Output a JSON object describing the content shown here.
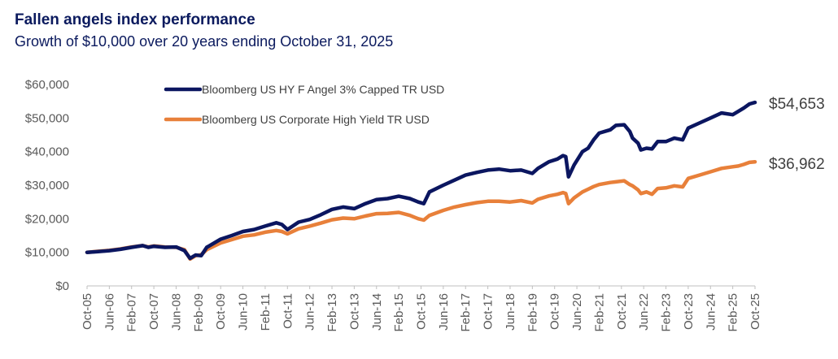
{
  "chart_data": {
    "type": "line",
    "title": "Fallen angels index performance",
    "subtitle": "Growth of $10,000 over 20 years ending October 31, 2025",
    "xlabel": "",
    "ylabel": "",
    "ylim": [
      0,
      60000
    ],
    "yticks": [
      0,
      10000,
      20000,
      30000,
      40000,
      50000,
      60000
    ],
    "ytick_labels": [
      "$0",
      "$10,000",
      "$20,000",
      "$30,000",
      "$40,000",
      "$50,000",
      "$60,000"
    ],
    "xtick_labels": [
      "Oct-05",
      "Jun-06",
      "Feb-07",
      "Oct-07",
      "Jun-08",
      "Feb-09",
      "Oct-09",
      "Jun-10",
      "Feb-11",
      "Oct-11",
      "Jun-12",
      "Feb-13",
      "Oct-13",
      "Jun-14",
      "Feb-15",
      "Oct-15",
      "Jun-16",
      "Feb-17",
      "Oct-17",
      "Jun-18",
      "Feb-19",
      "Oct-19",
      "Jun-20",
      "Feb-21",
      "Oct-21",
      "Jun-22",
      "Feb-23",
      "Oct-23",
      "Jun-24",
      "Feb-25",
      "Oct-25"
    ],
    "xtick_months": [
      0,
      8,
      16,
      24,
      32,
      40,
      48,
      56,
      64,
      72,
      80,
      88,
      96,
      104,
      112,
      120,
      128,
      136,
      144,
      152,
      160,
      168,
      176,
      184,
      192,
      200,
      208,
      216,
      224,
      232,
      240
    ],
    "x_months_range": [
      0,
      240
    ],
    "legend_position": "top-center",
    "series": [
      {
        "name": "Bloomberg US HY F Angel 3% Capped TR USD",
        "color": "#0b1660",
        "end_label": "$54,653",
        "points": [
          [
            0,
            10000
          ],
          [
            4,
            10200
          ],
          [
            8,
            10500
          ],
          [
            12,
            10900
          ],
          [
            16,
            11500
          ],
          [
            20,
            12000
          ],
          [
            22,
            11500
          ],
          [
            24,
            11800
          ],
          [
            28,
            11500
          ],
          [
            32,
            11600
          ],
          [
            35,
            10500
          ],
          [
            37,
            8200
          ],
          [
            39,
            9200
          ],
          [
            41,
            9000
          ],
          [
            43,
            11500
          ],
          [
            48,
            13900
          ],
          [
            52,
            15000
          ],
          [
            56,
            16200
          ],
          [
            60,
            16800
          ],
          [
            64,
            17800
          ],
          [
            68,
            18800
          ],
          [
            70,
            18300
          ],
          [
            72,
            16800
          ],
          [
            76,
            19000
          ],
          [
            80,
            19800
          ],
          [
            84,
            21200
          ],
          [
            88,
            22800
          ],
          [
            92,
            23500
          ],
          [
            96,
            23000
          ],
          [
            100,
            24500
          ],
          [
            104,
            25700
          ],
          [
            108,
            26000
          ],
          [
            112,
            26700
          ],
          [
            116,
            26000
          ],
          [
            119,
            25000
          ],
          [
            121,
            24500
          ],
          [
            123,
            28000
          ],
          [
            128,
            30000
          ],
          [
            132,
            31500
          ],
          [
            136,
            33000
          ],
          [
            140,
            33800
          ],
          [
            144,
            34500
          ],
          [
            148,
            34800
          ],
          [
            152,
            34300
          ],
          [
            156,
            34500
          ],
          [
            160,
            33500
          ],
          [
            162,
            35000
          ],
          [
            166,
            37000
          ],
          [
            169,
            37800
          ],
          [
            171,
            38800
          ],
          [
            172,
            38500
          ],
          [
            173,
            32500
          ],
          [
            175,
            36000
          ],
          [
            178,
            40000
          ],
          [
            180,
            41000
          ],
          [
            182,
            43500
          ],
          [
            184,
            45500
          ],
          [
            188,
            46500
          ],
          [
            190,
            47800
          ],
          [
            193,
            48000
          ],
          [
            195,
            46000
          ],
          [
            196,
            44000
          ],
          [
            198,
            42500
          ],
          [
            199,
            40500
          ],
          [
            201,
            41000
          ],
          [
            203,
            40800
          ],
          [
            205,
            43000
          ],
          [
            208,
            43000
          ],
          [
            211,
            44000
          ],
          [
            214,
            43500
          ],
          [
            216,
            47000
          ],
          [
            220,
            48500
          ],
          [
            224,
            50000
          ],
          [
            228,
            51500
          ],
          [
            232,
            51000
          ],
          [
            234,
            52000
          ],
          [
            236,
            53000
          ],
          [
            238,
            54200
          ],
          [
            240,
            54653
          ]
        ]
      },
      {
        "name": "Bloomberg US Corporate High Yield TR USD",
        "color": "#e8803a",
        "end_label": "$36,962",
        "points": [
          [
            0,
            10000
          ],
          [
            4,
            10300
          ],
          [
            8,
            10600
          ],
          [
            12,
            11000
          ],
          [
            16,
            11600
          ],
          [
            20,
            12000
          ],
          [
            22,
            11600
          ],
          [
            24,
            11900
          ],
          [
            28,
            11600
          ],
          [
            32,
            11500
          ],
          [
            35,
            10800
          ],
          [
            37,
            8000
          ],
          [
            39,
            9000
          ],
          [
            41,
            9300
          ],
          [
            43,
            10800
          ],
          [
            48,
            12800
          ],
          [
            52,
            13800
          ],
          [
            56,
            14800
          ],
          [
            60,
            15200
          ],
          [
            64,
            16000
          ],
          [
            68,
            16500
          ],
          [
            70,
            16200
          ],
          [
            72,
            15500
          ],
          [
            76,
            17000
          ],
          [
            80,
            17800
          ],
          [
            84,
            18700
          ],
          [
            88,
            19700
          ],
          [
            92,
            20200
          ],
          [
            96,
            20000
          ],
          [
            100,
            20800
          ],
          [
            104,
            21500
          ],
          [
            108,
            21600
          ],
          [
            112,
            21900
          ],
          [
            116,
            21000
          ],
          [
            119,
            20000
          ],
          [
            121,
            19600
          ],
          [
            123,
            21000
          ],
          [
            128,
            22500
          ],
          [
            132,
            23500
          ],
          [
            136,
            24200
          ],
          [
            140,
            24800
          ],
          [
            144,
            25200
          ],
          [
            148,
            25200
          ],
          [
            152,
            25000
          ],
          [
            156,
            25400
          ],
          [
            160,
            24700
          ],
          [
            162,
            25800
          ],
          [
            166,
            26800
          ],
          [
            169,
            27300
          ],
          [
            171,
            27800
          ],
          [
            172,
            27500
          ],
          [
            173,
            24500
          ],
          [
            175,
            26200
          ],
          [
            178,
            28000
          ],
          [
            180,
            28800
          ],
          [
            182,
            29600
          ],
          [
            184,
            30200
          ],
          [
            188,
            30800
          ],
          [
            190,
            31000
          ],
          [
            193,
            31300
          ],
          [
            195,
            30200
          ],
          [
            196,
            29800
          ],
          [
            198,
            28600
          ],
          [
            199,
            27500
          ],
          [
            201,
            28000
          ],
          [
            203,
            27300
          ],
          [
            205,
            29000
          ],
          [
            208,
            29200
          ],
          [
            211,
            29800
          ],
          [
            214,
            29500
          ],
          [
            216,
            32000
          ],
          [
            220,
            33000
          ],
          [
            224,
            34000
          ],
          [
            228,
            35000
          ],
          [
            232,
            35500
          ],
          [
            234,
            35700
          ],
          [
            236,
            36200
          ],
          [
            238,
            36800
          ],
          [
            240,
            36962
          ]
        ]
      }
    ]
  }
}
